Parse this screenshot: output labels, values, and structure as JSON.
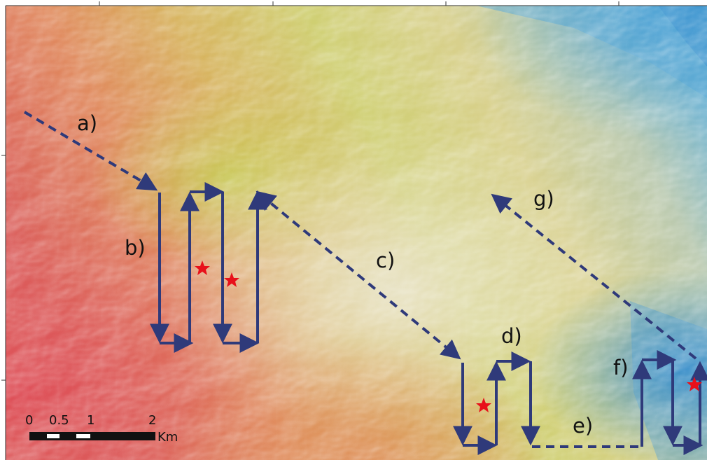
{
  "map": {
    "route_labels": [
      "a)",
      "b)",
      "c)",
      "d)",
      "e)",
      "f)",
      "g)"
    ],
    "scale_bar": {
      "ticks": [
        "0",
        "0.5",
        "1",
        "2"
      ],
      "unit": "Km"
    },
    "route_color": "#2f3a7a",
    "marker_color": "#e8101a",
    "markers": 4
  }
}
